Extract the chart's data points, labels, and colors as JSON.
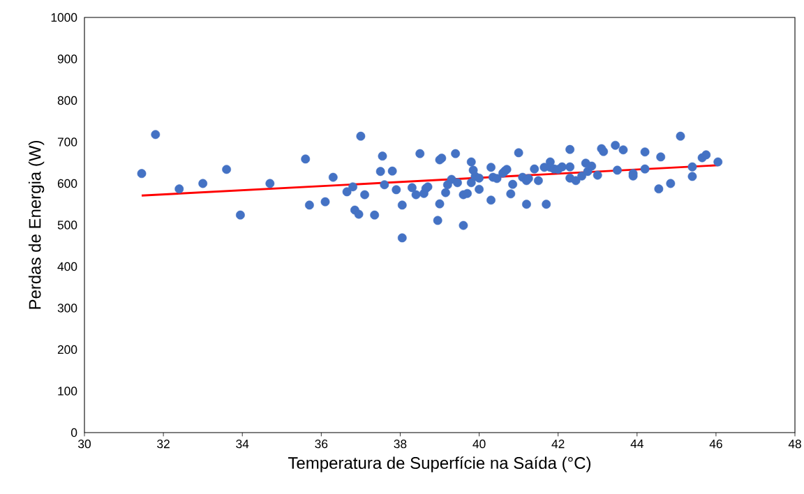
{
  "chart_data": {
    "type": "scatter",
    "xlabel": "Temperatura de Superfície na Saída (°C)",
    "ylabel": "Perdas de Energia (W)",
    "xlim": [
      30,
      48
    ],
    "xticks": [
      30,
      32,
      34,
      36,
      38,
      40,
      42,
      44,
      46,
      48
    ],
    "ylim": [
      0,
      1000
    ],
    "yticks": [
      0,
      100,
      200,
      300,
      400,
      500,
      600,
      700,
      800,
      900,
      1000
    ],
    "grid": false,
    "series": [
      {
        "marker": "circle",
        "color": "#4472c4",
        "x": [
          31.45,
          31.8,
          32.4,
          33.0,
          33.6,
          33.95,
          34.7,
          35.6,
          35.7,
          36.1,
          36.3,
          36.65,
          36.8,
          36.85,
          36.95,
          37.0,
          37.1,
          37.35,
          37.5,
          37.55,
          37.6,
          37.8,
          37.9,
          38.05,
          38.05,
          38.3,
          38.4,
          38.5,
          38.6,
          38.65,
          38.7,
          38.95,
          39.0,
          39.0,
          39.05,
          39.15,
          39.2,
          39.3,
          39.4,
          39.45,
          39.6,
          39.6,
          39.7,
          39.8,
          39.8,
          39.85,
          39.9,
          40.0,
          40.0,
          40.3,
          40.3,
          40.35,
          40.45,
          40.6,
          40.65,
          40.7,
          40.8,
          40.85,
          41.0,
          41.1,
          41.2,
          41.2,
          41.25,
          41.4,
          41.5,
          41.7,
          41.65,
          41.8,
          41.8,
          41.9,
          42.0,
          42.1,
          42.3,
          42.3,
          42.3,
          42.45,
          42.6,
          42.7,
          42.75,
          42.85,
          43.0,
          43.1,
          43.15,
          43.45,
          43.5,
          43.65,
          43.9,
          43.9,
          44.2,
          44.2,
          44.55,
          44.6,
          44.85,
          45.1,
          45.4,
          45.4,
          45.65,
          45.75,
          46.05
        ],
        "values": [
          624,
          718,
          587,
          600,
          634,
          524,
          600,
          659,
          548,
          556,
          615,
          580,
          592,
          536,
          526,
          714,
          573,
          524,
          629,
          666,
          597,
          630,
          585,
          548,
          469,
          590,
          573,
          672,
          576,
          588,
          592,
          511,
          657,
          551,
          661,
          578,
          597,
          610,
          672,
          602,
          573,
          499,
          576,
          652,
          602,
          632,
          617,
          613,
          586,
          560,
          639,
          615,
          612,
          625,
          630,
          634,
          575,
          598,
          674,
          615,
          607,
          550,
          612,
          635,
          607,
          550,
          639,
          652,
          639,
          635,
          634,
          640,
          640,
          682,
          613,
          607,
          618,
          649,
          629,
          642,
          620,
          684,
          677,
          692,
          632,
          681,
          624,
          618,
          676,
          635,
          587,
          664,
          600,
          714,
          640,
          617,
          662,
          669,
          652
        ]
      },
      {
        "type": "line",
        "marker": "none",
        "line_style": "solid",
        "color": "#ff0000",
        "x": [
          31.45,
          46.05
        ],
        "values": [
          571,
          644
        ]
      }
    ]
  }
}
